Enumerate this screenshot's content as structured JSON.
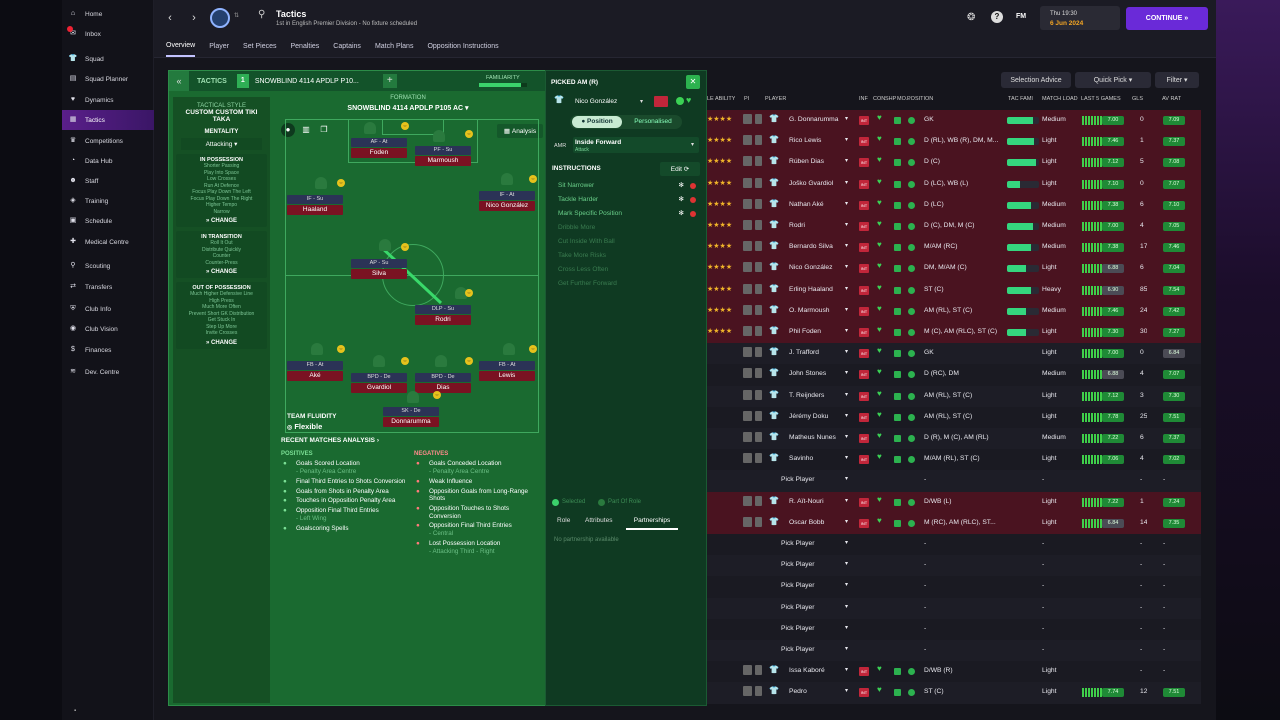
{
  "sidebar": {
    "items": [
      {
        "label": "Home",
        "icon": "home-icon"
      },
      {
        "label": "Inbox",
        "icon": "inbox-icon"
      },
      {
        "label": "Squad",
        "icon": "shirt-icon"
      },
      {
        "label": "Squad Planner",
        "icon": "planner-icon"
      },
      {
        "label": "Dynamics",
        "icon": "dynamics-icon"
      },
      {
        "label": "Tactics",
        "icon": "tactics-icon"
      },
      {
        "label": "Competitions",
        "icon": "trophy-icon"
      },
      {
        "label": "Data Hub",
        "icon": "data-icon"
      },
      {
        "label": "Staff",
        "icon": "staff-icon"
      },
      {
        "label": "Training",
        "icon": "training-icon"
      },
      {
        "label": "Schedule",
        "icon": "calendar-icon"
      },
      {
        "label": "Medical Centre",
        "icon": "medical-icon"
      },
      {
        "label": "Scouting",
        "icon": "scouting-icon"
      },
      {
        "label": "Transfers",
        "icon": "transfers-icon"
      },
      {
        "label": "Club Info",
        "icon": "info-icon"
      },
      {
        "label": "Club Vision",
        "icon": "vision-icon"
      },
      {
        "label": "Finances",
        "icon": "finances-icon"
      },
      {
        "label": "Dev. Centre",
        "icon": "dev-icon"
      }
    ]
  },
  "header": {
    "title": "Tactics",
    "subtitle": "1st in English Premier Division - No fixture scheduled",
    "date": "Thu 19:30",
    "date2": "6 Jun 2024",
    "continue": "CONTINUE",
    "fm": "FM"
  },
  "tabs": [
    "Overview",
    "Player",
    "Set Pieces",
    "Penalties",
    "Captains",
    "Match Plans",
    "Opposition Instructions"
  ],
  "toolbar": {
    "selection_advice": "Selection Advice",
    "quick_pick": "Quick Pick",
    "filter": "Filter"
  },
  "tactic": {
    "label": "TACTICS",
    "slot": "1",
    "name": "SNOWBLIND 4114 APDLP P10...",
    "familiarity": "FAMILIARITY",
    "formation_label": "FORMATION",
    "formation": "SNOWBLIND 4114 APDLP P105 AC",
    "analysis": "Analysis",
    "style_label": "TACTICAL STYLE",
    "style": "CUSTOM CUSTOM TIKI TAKA",
    "mentality_label": "MENTALITY",
    "mentality": "Attacking",
    "in_possession": "IN POSSESSION",
    "in_possession_items": [
      "Shorter Passing",
      "Play Into Space",
      "Low Crosses",
      "Run At Defence",
      "Focus Play Down The Left",
      "Focus Play Down The Right",
      "Higher Tempo",
      "Narrow"
    ],
    "in_transition": "IN TRANSITION",
    "in_transition_items": [
      "Roll It Out",
      "Distribute Quickly",
      "Counter",
      "Counter-Press"
    ],
    "out_possession": "OUT OF POSSESSION",
    "out_possession_items": [
      "Much Higher Defensive Line",
      "High Press",
      "Much More Often",
      "Prevent Short GK Distribution",
      "Get Stuck In",
      "Step Up More",
      "Invite Crosses"
    ],
    "change": "CHANGE",
    "fluidity_label": "TEAM FLUIDITY",
    "fluidity": "Flexible"
  },
  "pitch_players": [
    {
      "role": "AF - At",
      "name": "Foden"
    },
    {
      "role": "PF - Su",
      "name": "Marmoush"
    },
    {
      "role": "IF - Su",
      "name": "Haaland"
    },
    {
      "role": "IF - At",
      "name": "Nico González"
    },
    {
      "role": "AP - Su",
      "name": "Silva"
    },
    {
      "role": "DLP - Su",
      "name": "Rodri"
    },
    {
      "role": "FB - At",
      "name": "Aké"
    },
    {
      "role": "BPD - De",
      "name": "Gvardiol"
    },
    {
      "role": "BPD - De",
      "name": "Dias"
    },
    {
      "role": "FB - At",
      "name": "Lewis"
    },
    {
      "role": "SK - De",
      "name": "Donnarumma"
    }
  ],
  "recent": {
    "title": "RECENT MATCHES ANALYSIS",
    "positives_label": "POSITIVES",
    "negatives_label": "NEGATIVES",
    "positives": [
      "Goals Scored Location",
      "- Penalty Area Centre",
      "Final Third Entries to Shots Conversion",
      "Goals from Shots in Penalty Area",
      "Touches in Opposition Penalty Area",
      "Opposition Final Third Entries",
      "- Left Wing",
      "Goalscoring Spells"
    ],
    "negatives": [
      "Goals Conceded Location",
      "- Penalty Area Centre",
      "Weak Influence",
      "Opposition Goals from Long-Range Shots",
      "Opposition Touches to Shots Conversion",
      "Opposition Final Third Entries",
      "- Central",
      "Lost Possession Location",
      "- Attacking Third - Right"
    ]
  },
  "picked": {
    "title": "PICKED AM (R)",
    "player": "Nico González",
    "pos_tab": "Position",
    "pers_tab": "Personalised",
    "pos_code": "AMR",
    "role": "Inside Forward",
    "duty": "Attack",
    "instr_label": "INSTRUCTIONS",
    "edit": "Edit",
    "instructions": [
      "Sit Narrower",
      "Tackle Harder",
      "Mark Specific Position",
      "Dribble More",
      "Cut Inside With Ball",
      "Take More Risks",
      "Cross Less Often",
      "Get Further Forward"
    ],
    "legend_selected": "Selected",
    "legend_part": "Part Of Role",
    "tabs": [
      "Role",
      "Attributes",
      "Partnerships"
    ],
    "empty": "No partnership available"
  },
  "squad_headers": [
    "LE ABILITY",
    "PI",
    "PLAYER",
    "INF",
    "CON",
    "SHP",
    "MO...",
    "POSITION",
    "TAC FAMI",
    "MATCH LOAD",
    "LAST 5 GAMES",
    "GLS",
    "AV RAT"
  ],
  "squad": [
    {
      "name": "G. Donnarumma",
      "pos": "GK",
      "load": "Medium",
      "last": "7.00",
      "gls": "0",
      "av": "7.09",
      "fam": 0.8
    },
    {
      "name": "Rico Lewis",
      "pos": "D (RL), WB (R), DM, M...",
      "load": "Light",
      "last": "7.46",
      "gls": "1",
      "av": "7.37",
      "fam": 0.85
    },
    {
      "name": "Rúben Dias",
      "pos": "D (C)",
      "load": "Light",
      "last": "7.12",
      "gls": "5",
      "av": "7.08",
      "fam": 0.9
    },
    {
      "name": "Joško Gvardiol",
      "pos": "D (LC), WB (L)",
      "load": "Light",
      "last": "7.10",
      "gls": "0",
      "av": "7.07",
      "fam": 0.4
    },
    {
      "name": "Nathan Aké",
      "pos": "D (LC)",
      "load": "Medium",
      "last": "7.38",
      "gls": "6",
      "av": "7.10",
      "fam": 0.75
    },
    {
      "name": "Rodri",
      "pos": "D (C), DM, M (C)",
      "load": "Medium",
      "last": "7.00",
      "gls": "4",
      "av": "7.05",
      "fam": 0.8
    },
    {
      "name": "Bernardo Silva",
      "pos": "M/AM (RC)",
      "load": "Medium",
      "last": "7.38",
      "gls": "17",
      "av": "7.46",
      "fam": 0.75
    },
    {
      "name": "Nico González",
      "pos": "DM, M/AM (C)",
      "load": "Light",
      "last": "6.88",
      "gls": "6",
      "av": "7.04",
      "fam": 0.6
    },
    {
      "name": "Erling Haaland",
      "pos": "ST (C)",
      "load": "Heavy",
      "last": "6.90",
      "gls": "85",
      "av": "7.54",
      "fam": 0.75
    },
    {
      "name": "O. Marmoush",
      "pos": "AM (RL), ST (C)",
      "load": "Medium",
      "last": "7.46",
      "gls": "24",
      "av": "7.42",
      "fam": 0.6
    },
    {
      "name": "Phil Foden",
      "pos": "M (C), AM (RLC), ST (C)",
      "load": "Light",
      "last": "7.30",
      "gls": "30",
      "av": "7.27",
      "fam": 0.6
    },
    {
      "name": "J. Trafford",
      "pos": "GK",
      "load": "Light",
      "last": "7.00",
      "gls": "0",
      "av": "6.84"
    },
    {
      "name": "John Stones",
      "pos": "D (RC), DM",
      "load": "Medium",
      "last": "6.88",
      "gls": "4",
      "av": "7.07"
    },
    {
      "name": "T. Reijnders",
      "pos": "AM (RL), ST (C)",
      "load": "Light",
      "last": "7.12",
      "gls": "3",
      "av": "7.30"
    },
    {
      "name": "Jérémy Doku",
      "pos": "AM (RL), ST (C)",
      "load": "Light",
      "last": "7.78",
      "gls": "25",
      "av": "7.51"
    },
    {
      "name": "Matheus Nunes",
      "pos": "D (R), M (C), AM (RL)",
      "load": "Medium",
      "last": "7.22",
      "gls": "6",
      "av": "7.37"
    },
    {
      "name": "Savinho",
      "pos": "M/AM (RL), ST (C)",
      "load": "Light",
      "last": "7.06",
      "gls": "4",
      "av": "7.02"
    },
    {
      "name": "Pick Player",
      "pos": "-",
      "load": "-",
      "last": "",
      "gls": "-",
      "av": "-"
    },
    {
      "name": "R. Aït-Nouri",
      "pos": "D/WB (L)",
      "load": "Light",
      "last": "7.22",
      "gls": "1",
      "av": "7.24"
    },
    {
      "name": "Oscar Bobb",
      "pos": "M (RC), AM (RLC), ST...",
      "load": "Light",
      "last": "6.84",
      "gls": "14",
      "av": "7.35"
    },
    {
      "name": "Pick Player",
      "pos": "-",
      "load": "-",
      "last": "",
      "gls": "-",
      "av": "-"
    },
    {
      "name": "Pick Player",
      "pos": "-",
      "load": "-",
      "last": "",
      "gls": "-",
      "av": "-"
    },
    {
      "name": "Pick Player",
      "pos": "-",
      "load": "-",
      "last": "",
      "gls": "-",
      "av": "-"
    },
    {
      "name": "Pick Player",
      "pos": "-",
      "load": "-",
      "last": "",
      "gls": "-",
      "av": "-"
    },
    {
      "name": "Pick Player",
      "pos": "-",
      "load": "-",
      "last": "",
      "gls": "-",
      "av": "-"
    },
    {
      "name": "Pick Player",
      "pos": "-",
      "load": "-",
      "last": "",
      "gls": "-",
      "av": "-"
    },
    {
      "name": "Issa Kaboré",
      "pos": "D/WB (R)",
      "load": "Light",
      "last": "",
      "gls": "-",
      "av": "-"
    },
    {
      "name": "Pedro",
      "pos": "ST (C)",
      "load": "Light",
      "last": "7.74",
      "gls": "12",
      "av": "7.51"
    }
  ]
}
